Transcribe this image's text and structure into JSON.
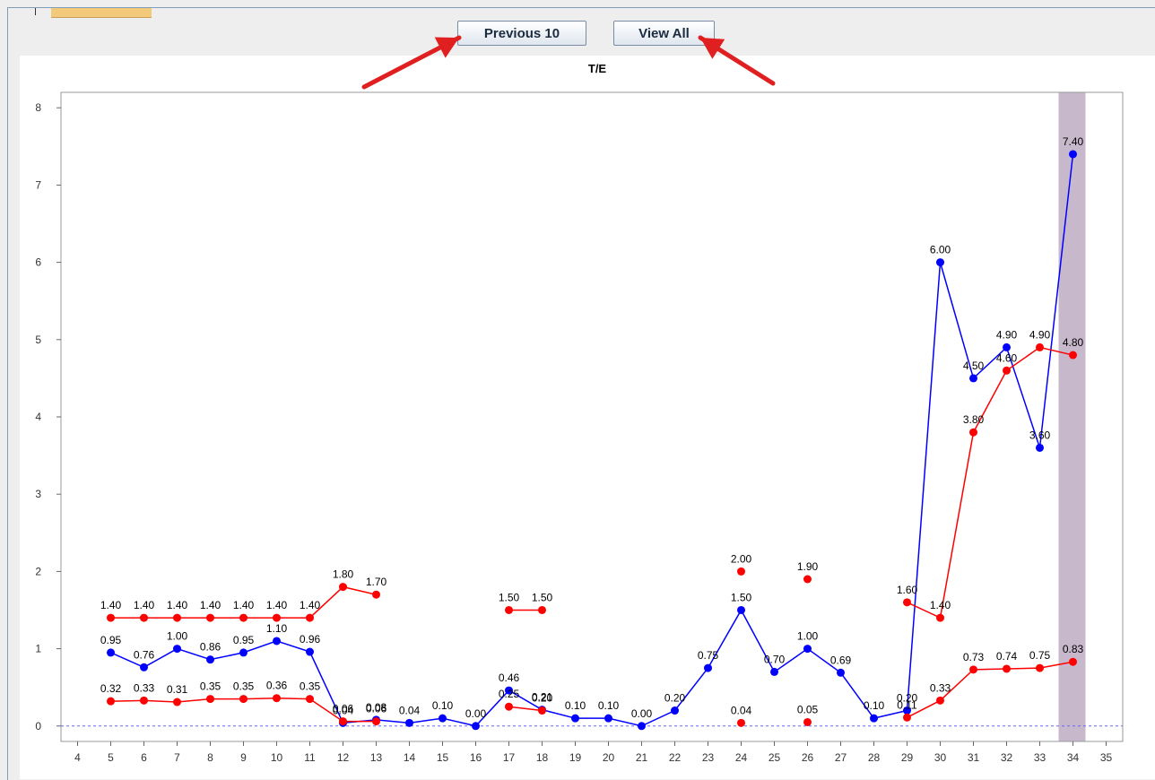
{
  "toolbar": {
    "previous_label": "Previous 10",
    "view_all_label": "View All"
  },
  "colors": {
    "series_blue": "#0000ff",
    "series_red": "#ff0000",
    "highlight_band": "#c8b8cc",
    "annotation_arrow": "#e02020"
  },
  "chart_data": {
    "type": "line",
    "title": "T/E",
    "xlabel": "",
    "ylabel": "",
    "xlim": [
      3.5,
      35.5
    ],
    "ylim": [
      -0.2,
      8.2
    ],
    "x_ticks": [
      4,
      5,
      6,
      7,
      8,
      9,
      10,
      11,
      12,
      13,
      14,
      15,
      16,
      17,
      18,
      19,
      20,
      21,
      22,
      23,
      24,
      25,
      26,
      27,
      28,
      29,
      30,
      31,
      32,
      33,
      34,
      35
    ],
    "y_ticks": [
      0,
      1,
      2,
      3,
      4,
      5,
      6,
      7,
      8
    ],
    "zero_line": "dashed",
    "highlight_x": 34,
    "series": [
      {
        "color": "#0000ff",
        "points": [
          [
            5,
            0.95
          ],
          [
            6,
            0.76
          ],
          [
            7,
            1.0
          ],
          [
            8,
            0.86
          ],
          [
            9,
            0.95
          ],
          [
            10,
            1.1
          ],
          [
            11,
            0.96
          ],
          [
            12,
            0.04
          ],
          [
            13,
            0.08
          ],
          [
            14,
            0.04
          ],
          [
            15,
            0.1
          ],
          [
            16,
            0.0
          ],
          [
            17,
            0.46
          ],
          [
            18,
            0.21
          ],
          [
            19,
            0.1
          ],
          [
            20,
            0.1
          ],
          [
            21,
            0.0
          ],
          [
            22,
            0.2
          ],
          [
            23,
            0.75
          ],
          [
            24,
            1.5
          ],
          [
            25,
            0.7
          ],
          [
            26,
            1.0
          ],
          [
            27,
            0.69
          ],
          [
            28,
            0.1
          ],
          [
            29,
            0.2
          ],
          [
            30,
            6.0
          ],
          [
            31,
            4.5
          ],
          [
            32,
            4.9
          ],
          [
            33,
            3.6
          ],
          [
            34,
            7.4
          ]
        ],
        "labels": [
          "0.95",
          "0.76",
          "1.00",
          "0.86",
          "0.95",
          "1.10",
          "0.96",
          "0.04",
          "0.08",
          "0.04",
          "0.10",
          "0.00",
          "0.46",
          "0.21",
          "0.10",
          "0.10",
          "0.00",
          "0.20",
          "0.75",
          "1.50",
          "0.70",
          "1.00",
          "0.69",
          "0.10",
          "0.20",
          "6.00",
          "4.50",
          "4.90",
          "3.60",
          "7.40"
        ]
      },
      {
        "color": "#ff0000",
        "segments": [
          {
            "points": [
              [
                5,
                1.4
              ],
              [
                6,
                1.4
              ],
              [
                7,
                1.4
              ],
              [
                8,
                1.4
              ],
              [
                9,
                1.4
              ],
              [
                10,
                1.4
              ],
              [
                11,
                1.4
              ],
              [
                12,
                1.8
              ],
              [
                13,
                1.7
              ]
            ],
            "labels": [
              "1.40",
              "1.40",
              "1.40",
              "1.40",
              "1.40",
              "1.40",
              "1.40",
              "1.80",
              "1.70"
            ]
          },
          {
            "points": [
              [
                17,
                1.5
              ],
              [
                18,
                1.5
              ]
            ],
            "labels": [
              "1.50",
              "1.50"
            ]
          },
          {
            "points": [
              [
                24,
                2.0
              ]
            ],
            "labels": [
              "2.00"
            ]
          },
          {
            "points": [
              [
                26,
                1.9
              ]
            ],
            "labels": [
              "1.90"
            ]
          },
          {
            "points": [
              [
                29,
                1.6
              ],
              [
                30,
                1.4
              ],
              [
                31,
                3.8
              ],
              [
                32,
                4.6
              ],
              [
                33,
                4.9
              ],
              [
                34,
                4.8
              ]
            ],
            "labels": [
              "1.60",
              "1.40",
              "3.80",
              "4.60",
              "4.90",
              "4.80"
            ]
          }
        ]
      },
      {
        "color": "#ff0000",
        "segments": [
          {
            "points": [
              [
                5,
                0.32
              ],
              [
                6,
                0.33
              ],
              [
                7,
                0.31
              ],
              [
                8,
                0.35
              ],
              [
                9,
                0.35
              ],
              [
                10,
                0.36
              ],
              [
                11,
                0.35
              ],
              [
                12,
                0.06
              ],
              [
                13,
                0.06
              ]
            ],
            "labels": [
              "0.32",
              "0.33",
              "0.31",
              "0.35",
              "0.35",
              "0.36",
              "0.35",
              "0.06",
              "0.06"
            ]
          },
          {
            "points": [
              [
                17,
                0.25
              ],
              [
                18,
                0.2
              ]
            ],
            "labels": [
              "0.25",
              "0.20"
            ]
          },
          {
            "points": [
              [
                24,
                0.04
              ]
            ],
            "labels": [
              "0.04"
            ]
          },
          {
            "points": [
              [
                26,
                0.05
              ]
            ],
            "labels": [
              "0.05"
            ]
          },
          {
            "points": [
              [
                29,
                0.11
              ],
              [
                30,
                0.33
              ],
              [
                31,
                0.73
              ],
              [
                32,
                0.74
              ],
              [
                33,
                0.75
              ],
              [
                34,
                0.83
              ]
            ],
            "labels": [
              "0.11",
              "0.33",
              "0.73",
              "0.74",
              "0.75",
              "0.83"
            ]
          }
        ]
      }
    ]
  }
}
